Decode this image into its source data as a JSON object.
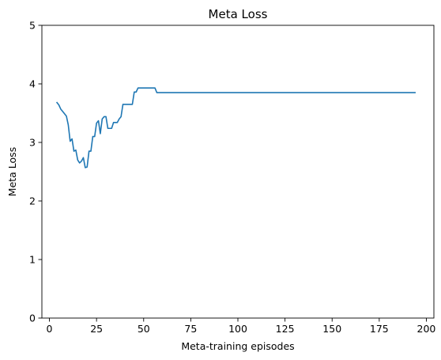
{
  "chart_data": {
    "type": "line",
    "title": "Meta Loss",
    "xlabel": "Meta-training episodes",
    "ylabel": "Meta Loss",
    "xlim": [
      -4,
      204
    ],
    "ylim": [
      0,
      5
    ],
    "xticks": [
      0,
      25,
      50,
      75,
      100,
      125,
      150,
      175,
      200
    ],
    "yticks": [
      0,
      1,
      2,
      3,
      4,
      5
    ],
    "grid": false,
    "line_color": "#1f77b4",
    "series": [
      {
        "x": [
          4,
          5,
          6,
          7,
          8,
          9,
          10,
          11,
          12,
          13,
          14,
          15,
          16,
          17,
          18,
          19,
          20,
          21,
          22,
          23,
          24,
          25,
          26,
          27,
          28,
          29,
          30,
          31,
          32,
          33,
          34,
          35,
          36,
          37,
          38,
          39,
          40,
          41,
          42,
          43,
          44,
          45,
          46,
          47,
          48,
          49,
          50,
          51,
          52,
          53,
          54,
          55,
          56,
          57,
          58,
          59,
          60,
          194
        ],
        "values": [
          3.68,
          3.64,
          3.57,
          3.53,
          3.49,
          3.45,
          3.3,
          3.02,
          3.06,
          2.85,
          2.87,
          2.7,
          2.65,
          2.68,
          2.74,
          2.57,
          2.58,
          2.85,
          2.85,
          3.1,
          3.1,
          3.33,
          3.37,
          3.15,
          3.4,
          3.44,
          3.44,
          3.24,
          3.24,
          3.24,
          3.34,
          3.34,
          3.34,
          3.4,
          3.44,
          3.65,
          3.65,
          3.65,
          3.65,
          3.65,
          3.65,
          3.86,
          3.86,
          3.93,
          3.93,
          3.93,
          3.93,
          3.93,
          3.93,
          3.93,
          3.93,
          3.93,
          3.93,
          3.85,
          3.85,
          3.85,
          3.85,
          3.85
        ]
      }
    ]
  }
}
